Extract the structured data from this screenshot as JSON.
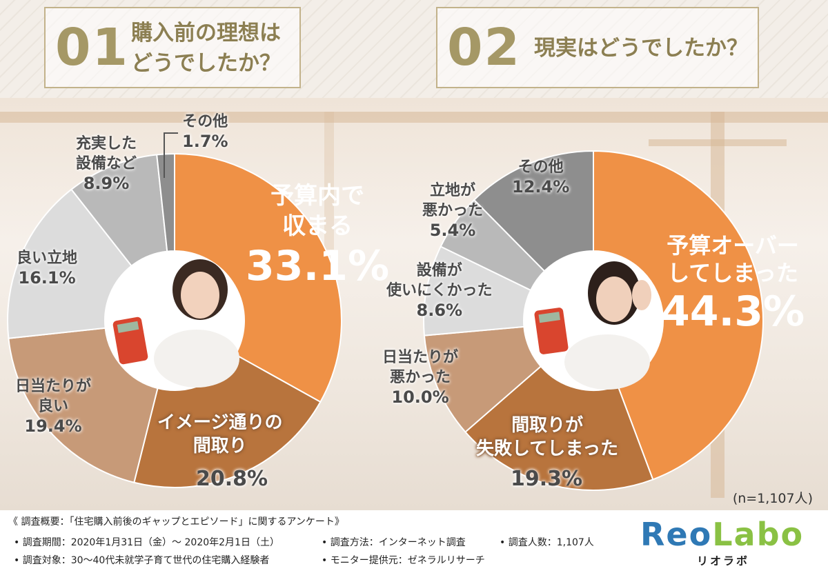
{
  "header": {
    "q1": {
      "number": "01",
      "line1": "購入前の理想は",
      "line2": "どうでしたか？"
    },
    "q2": {
      "number": "02",
      "line1": "現実はどうでしたか？"
    }
  },
  "colors": {
    "orange": "#ef9146",
    "brown_dark": "#b8743d",
    "brown_light": "#c79a78",
    "gray_light": "#dcdcdc",
    "gray_mid": "#b9b9b9",
    "gray_dark": "#8e8e8e",
    "logo_blue": "#2f79b5",
    "logo_green": "#8ac144"
  },
  "chart_data": [
    {
      "type": "pie",
      "categories": [
        "予算内で収まる",
        "イメージ通りの間取り",
        "日当たりが良い",
        "良い立地",
        "充実した設備など",
        "その他"
      ],
      "values": [
        33.1,
        20.8,
        19.4,
        16.1,
        8.9,
        1.7
      ],
      "labels": [
        {
          "text": "予算内で\n収まる",
          "value": "33.1%"
        },
        {
          "text": "イメージ通りの\n間取り",
          "value": "20.8%"
        },
        {
          "text": "日当たりが\n良い",
          "value": "19.4%"
        },
        {
          "text": "良い立地",
          "value": "16.1%"
        },
        {
          "text": "充実した\n設備など",
          "value": "8.9%"
        },
        {
          "text": "その他",
          "value": "1.7%"
        }
      ]
    },
    {
      "type": "pie",
      "categories": [
        "予算オーバーしてしまった",
        "間取りが失敗してしまった",
        "日当たりが悪かった",
        "設備が使いにくかった",
        "立地が悪かった",
        "その他"
      ],
      "values": [
        44.3,
        19.3,
        10.0,
        8.6,
        5.4,
        12.4
      ],
      "labels": [
        {
          "text": "予算オーバー\nしてしまった",
          "value": "44.3%"
        },
        {
          "text": "間取りが\n失敗してしまった",
          "value": "19.3%"
        },
        {
          "text": "日当たりが\n悪かった",
          "value": "10.0%"
        },
        {
          "text": "設備が\n使いにくかった",
          "value": "8.6%"
        },
        {
          "text": "立地が\n悪かった",
          "value": "5.4%"
        },
        {
          "text": "その他",
          "value": "12.4%"
        }
      ]
    }
  ],
  "sample_note": "(n=1,107人)",
  "footer": {
    "title": "《 調査概要：「住宅購入前後のギャップとエピソード」に関するアンケート》",
    "period": "• 調査期間：2020年1月31日（金）〜 2020年2月1日（土）",
    "method": "• 調査方法：インターネット調査",
    "count": "• 調査人数：1,107人",
    "target": "• 調査対象：30〜40代未就学子育て世代の住宅購入経験者",
    "provider": "• モニター提供元：ゼネラルリサーチ"
  },
  "logo": {
    "text": "ReoLabo",
    "sub": "リオラボ"
  }
}
